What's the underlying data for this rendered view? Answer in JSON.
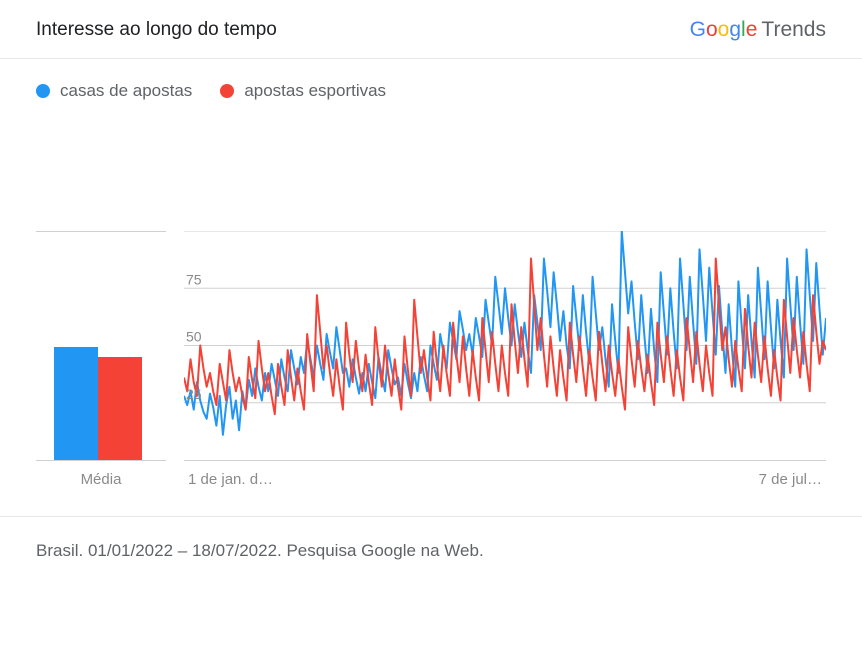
{
  "header": {
    "title": "Interesse ao longo do tempo",
    "logo_google": "Google",
    "logo_trends": "Trends"
  },
  "legend": {
    "items": [
      {
        "label": "casas de apostas",
        "color": "#2196f3"
      },
      {
        "label": "apostas esportivas",
        "color": "#f44336"
      }
    ]
  },
  "avg_panel": {
    "label": "Média",
    "bars": [
      {
        "value": 49,
        "color": "#2196f3"
      },
      {
        "value": 45,
        "color": "#f44336"
      }
    ],
    "ymax": 100
  },
  "chart": {
    "type": "line",
    "ylim": [
      0,
      100
    ],
    "yticks": [
      25,
      50,
      75,
      100
    ],
    "grid_color": "#d0d0d0",
    "background_color": "#ffffff",
    "line_width": 2,
    "x_start_label": "1 de jan. d…",
    "x_end_label": "7 de jul…",
    "series": [
      {
        "name": "casas de apostas",
        "color": "#2196f3",
        "values": [
          28,
          24,
          30,
          22,
          34,
          26,
          21,
          18,
          29,
          23,
          15,
          28,
          11,
          24,
          32,
          18,
          26,
          13,
          30,
          22,
          35,
          28,
          40,
          32,
          26,
          38,
          30,
          42,
          35,
          28,
          44,
          36,
          30,
          48,
          40,
          33,
          45,
          38,
          52,
          44,
          36,
          50,
          42,
          35,
          55,
          47,
          40,
          58,
          48,
          38,
          40,
          32,
          44,
          36,
          29,
          38,
          30,
          42,
          34,
          27,
          45,
          37,
          30,
          48,
          40,
          33,
          36,
          28,
          42,
          34,
          27,
          38,
          30,
          45,
          37,
          30,
          50,
          42,
          35,
          55,
          47,
          40,
          60,
          52,
          44,
          65,
          57,
          48,
          55,
          46,
          62,
          54,
          45,
          70,
          60,
          50,
          80,
          68,
          55,
          75,
          62,
          50,
          68,
          56,
          45,
          60,
          48,
          38,
          72,
          60,
          48,
          88,
          74,
          58,
          82,
          68,
          52,
          65,
          50,
          40,
          76,
          62,
          48,
          72,
          56,
          42,
          80,
          64,
          48,
          58,
          44,
          32,
          68,
          52,
          38,
          100,
          82,
          64,
          78,
          60,
          44,
          72,
          54,
          38,
          66,
          48,
          34,
          82,
          64,
          46,
          75,
          56,
          40,
          88,
          68,
          48,
          80,
          60,
          42,
          92,
          72,
          52,
          84,
          64,
          46,
          76,
          56,
          38,
          68,
          48,
          32,
          78,
          58,
          40,
          72,
          52,
          36,
          84,
          64,
          44,
          78,
          58,
          40,
          70,
          52,
          36,
          88,
          68,
          48,
          80,
          60,
          42,
          92,
          72,
          52,
          86,
          66,
          46,
          62
        ]
      },
      {
        "name": "apostas esportivas",
        "color": "#f44336",
        "values": [
          36,
          30,
          44,
          34,
          28,
          50,
          40,
          32,
          38,
          30,
          24,
          42,
          34,
          26,
          48,
          38,
          30,
          36,
          28,
          22,
          45,
          35,
          27,
          52,
          40,
          30,
          38,
          28,
          20,
          42,
          32,
          24,
          48,
          36,
          26,
          40,
          30,
          22,
          55,
          42,
          30,
          72,
          56,
          40,
          50,
          38,
          28,
          44,
          32,
          22,
          60,
          46,
          34,
          52,
          40,
          30,
          46,
          34,
          24,
          58,
          44,
          32,
          50,
          38,
          28,
          44,
          32,
          22,
          54,
          40,
          28,
          70,
          54,
          38,
          48,
          36,
          26,
          56,
          42,
          30,
          50,
          38,
          28,
          60,
          46,
          34,
          54,
          40,
          28,
          48,
          36,
          26,
          62,
          48,
          34,
          56,
          42,
          30,
          50,
          38,
          28,
          68,
          52,
          38,
          58,
          44,
          32,
          88,
          68,
          48,
          62,
          46,
          32,
          54,
          40,
          28,
          48,
          36,
          26,
          60,
          46,
          34,
          54,
          40,
          28,
          48,
          36,
          26,
          56,
          42,
          30,
          50,
          38,
          28,
          44,
          32,
          22,
          58,
          44,
          32,
          52,
          40,
          30,
          46,
          34,
          24,
          60,
          46,
          34,
          54,
          40,
          28,
          48,
          36,
          26,
          62,
          48,
          34,
          56,
          42,
          30,
          50,
          38,
          28,
          88,
          68,
          48,
          58,
          44,
          32,
          52,
          40,
          30,
          66,
          50,
          36,
          60,
          46,
          34,
          54,
          40,
          28,
          48,
          36,
          26,
          70,
          54,
          38,
          62,
          48,
          36,
          56,
          42,
          30,
          72,
          56,
          42,
          52,
          48
        ]
      }
    ]
  },
  "footer": {
    "text": "Brasil. 01/01/2022 – 18/07/2022. Pesquisa Google na Web."
  }
}
